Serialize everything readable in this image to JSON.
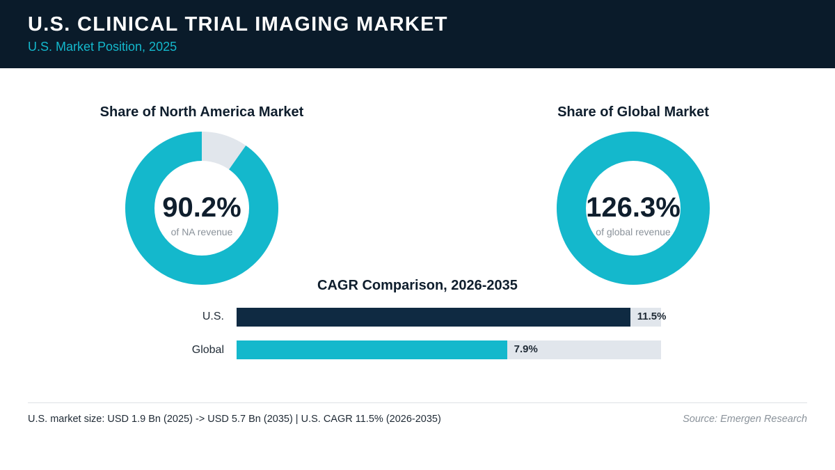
{
  "header": {
    "title": "U.S. CLINICAL TRIAL IMAGING MARKET",
    "subtitle": "U.S. Market Position, 2025"
  },
  "colors": {
    "header_bg": "#0a1b2a",
    "accent": "#14b8cc",
    "navy": "#0f2a42",
    "track": "#e1e6ec"
  },
  "chart_data": [
    {
      "type": "pie",
      "title": "Share of North America Market",
      "value_label": "90.2%",
      "caption": "of NA revenue",
      "value": 90.2,
      "max": 100
    },
    {
      "type": "pie",
      "title": "Share of Global Market",
      "value_label": "126.3%",
      "caption": "of global revenue",
      "value": 126.3,
      "max": 100
    },
    {
      "type": "bar",
      "title": "CAGR Comparison, 2026-2035",
      "categories": [
        "U.S.",
        "Global"
      ],
      "values": [
        11.5,
        7.9
      ],
      "value_labels": [
        "11.5%",
        "7.9%"
      ],
      "xlim": [
        0,
        12.4
      ]
    }
  ],
  "footer": {
    "note": "U.S. market size: USD 1.9 Bn (2025) -> USD 5.7 Bn (2035)  |  U.S. CAGR 11.5% (2026-2035)",
    "source": "Source: Emergen Research"
  }
}
